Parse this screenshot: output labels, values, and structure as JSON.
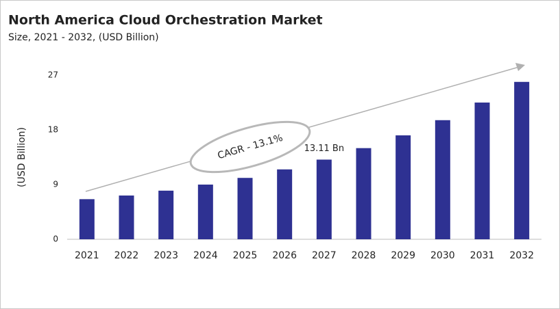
{
  "chart_data": {
    "type": "bar",
    "title": "North America Cloud Orchestration Market",
    "subtitle": "Size, 2021 - 2032, (USD Billion)",
    "y_label": "(USD Billion)",
    "annotation": "CAGR - 13.1%",
    "categories": [
      "2021",
      "2022",
      "2023",
      "2024",
      "2025",
      "2026",
      "2027",
      "2028",
      "2029",
      "2030",
      "2031",
      "2032"
    ],
    "values": [
      6.6,
      7.2,
      8.0,
      9.0,
      10.1,
      11.5,
      13.11,
      15.0,
      17.1,
      19.6,
      22.5,
      25.9
    ],
    "value_labels": [
      null,
      null,
      null,
      null,
      null,
      null,
      "13.11 Bn",
      null,
      null,
      null,
      null,
      null
    ],
    "color": "#2e3192",
    "ylim": [
      0,
      27
    ],
    "yticks": [
      0,
      9,
      18,
      27
    ],
    "grid": false
  }
}
